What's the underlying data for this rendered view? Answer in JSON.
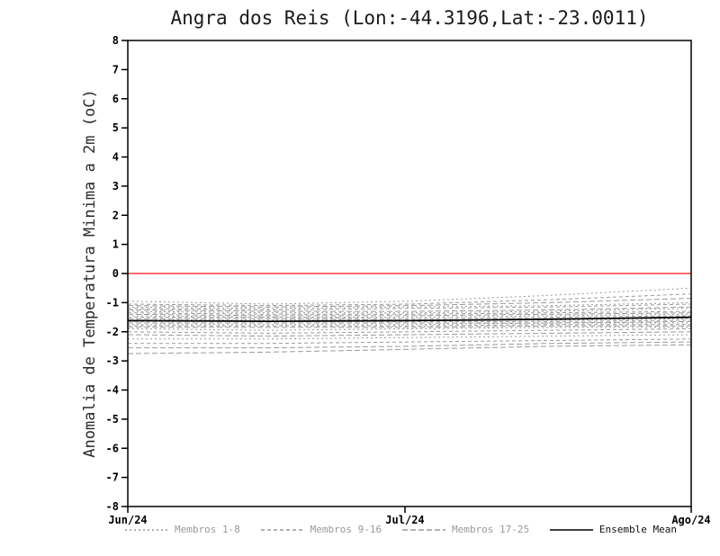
{
  "chart_data": {
    "type": "line",
    "title": "Angra dos Reis (Lon:-44.3196,Lat:-23.0011)",
    "ylabel": "Anomalia de Temperatura Minima a 2m (oC)",
    "xlabel": "",
    "ylim": [
      -8,
      8
    ],
    "yticks": [
      -8,
      -7,
      -6,
      -5,
      -4,
      -3,
      -2,
      -1,
      0,
      1,
      2,
      3,
      4,
      5,
      6,
      7,
      8
    ],
    "xticks": [
      {
        "pos": 0.0,
        "label": "Jun/24"
      },
      {
        "pos": 0.492,
        "label": "Jul/24"
      },
      {
        "pos": 1.0,
        "label": "Ago/24"
      }
    ],
    "x": [
      0,
      0.25,
      0.5,
      0.75,
      1
    ],
    "grid": false,
    "axis_color": "#000000",
    "zero_line_value": 0,
    "zero_line_color": "#fa3c3c",
    "groups": [
      {
        "name": "Membros 1-8",
        "color": "#9a9a9a",
        "dash": "2,3",
        "members": [
          [
            -0.95,
            -1.05,
            -0.95,
            -0.75,
            -0.5
          ],
          [
            -1.15,
            -1.2,
            -1.15,
            -1.1,
            -1.0
          ],
          [
            -1.3,
            -1.35,
            -1.35,
            -1.3,
            -1.2
          ],
          [
            -1.45,
            -1.5,
            -1.5,
            -1.45,
            -1.4
          ],
          [
            -1.6,
            -1.6,
            -1.6,
            -1.6,
            -1.55
          ],
          [
            -1.75,
            -1.75,
            -1.75,
            -1.7,
            -1.7
          ],
          [
            -1.9,
            -1.95,
            -1.9,
            -1.85,
            -1.85
          ],
          [
            -2.25,
            -2.25,
            -2.2,
            -2.15,
            -2.1
          ]
        ]
      },
      {
        "name": "Membros 9-16",
        "color": "#9a9a9a",
        "dash": "4,3",
        "members": [
          [
            -1.05,
            -1.1,
            -1.05,
            -0.9,
            -0.7
          ],
          [
            -1.2,
            -1.25,
            -1.2,
            -1.15,
            -1.05
          ],
          [
            -1.35,
            -1.4,
            -1.4,
            -1.35,
            -1.3
          ],
          [
            -1.5,
            -1.5,
            -1.55,
            -1.5,
            -1.45
          ],
          [
            -1.65,
            -1.65,
            -1.65,
            -1.65,
            -1.6
          ],
          [
            -1.8,
            -1.8,
            -1.8,
            -1.75,
            -1.75
          ],
          [
            -2.0,
            -2.05,
            -2.0,
            -1.95,
            -1.9
          ],
          [
            -2.4,
            -2.4,
            -2.35,
            -2.3,
            -2.25
          ]
        ]
      },
      {
        "name": "Membros 17-25",
        "color": "#9a9a9a",
        "dash": "6,3",
        "members": [
          [
            -1.1,
            -1.15,
            -1.1,
            -1.0,
            -0.85
          ],
          [
            -1.25,
            -1.3,
            -1.3,
            -1.25,
            -1.15
          ],
          [
            -1.4,
            -1.45,
            -1.45,
            -1.4,
            -1.35
          ],
          [
            -1.55,
            -1.55,
            -1.6,
            -1.55,
            -1.5
          ],
          [
            -1.7,
            -1.7,
            -1.7,
            -1.7,
            -1.65
          ],
          [
            -1.85,
            -1.85,
            -1.85,
            -1.8,
            -1.8
          ],
          [
            -2.1,
            -2.15,
            -2.1,
            -2.05,
            -2.0
          ],
          [
            -2.55,
            -2.55,
            -2.5,
            -2.4,
            -2.35
          ],
          [
            -2.75,
            -2.7,
            -2.6,
            -2.5,
            -2.45
          ]
        ]
      }
    ],
    "ensemble_mean": {
      "name": "Ensemble Mean",
      "color": "#000000",
      "values": [
        -1.62,
        -1.64,
        -1.62,
        -1.57,
        -1.5
      ]
    },
    "legend": [
      {
        "label": "Membros 1-8",
        "color": "#9a9a9a",
        "dash": "2,3",
        "label_color": "#999999"
      },
      {
        "label": "Membros 9-16",
        "color": "#9a9a9a",
        "dash": "4,3",
        "label_color": "#999999"
      },
      {
        "label": "Membros 17-25",
        "color": "#9a9a9a",
        "dash": "6,3",
        "label_color": "#999999"
      },
      {
        "label": "Ensemble Mean",
        "color": "#000000",
        "dash": "",
        "label_color": "#111111"
      }
    ]
  }
}
